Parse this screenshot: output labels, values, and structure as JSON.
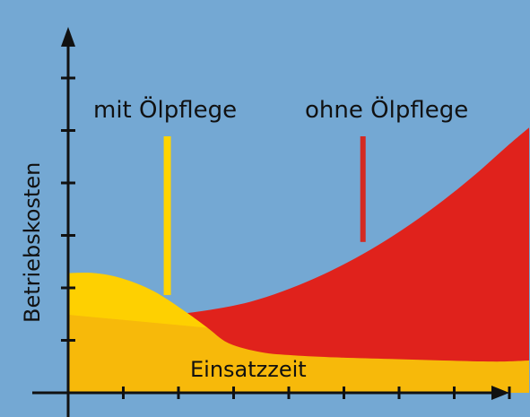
{
  "colors": {
    "background": "#74a8d3",
    "axis": "#111111",
    "with_oil_care": "#f7b90a",
    "with_oil_care_hump": "#ffd400",
    "without_oil_care": "#e0221c",
    "marker_with": "#ffd400",
    "marker_without": "#d42a22"
  },
  "chart_data": {
    "type": "area",
    "xlabel": "Einsatzzeit",
    "ylabel": "Betriebskosten",
    "x_ticks": 8,
    "y_ticks": 6,
    "series": [
      {
        "name": "mit Ölpflege",
        "x": [
          0,
          0.5,
          1,
          1.6,
          2.2,
          2.6,
          3,
          3.6,
          4.2,
          5,
          6,
          7,
          8,
          8.6
        ],
        "values": [
          2.3,
          2.3,
          2.2,
          1.95,
          1.55,
          1.25,
          0.95,
          0.78,
          0.72,
          0.68,
          0.65,
          0.62,
          0.6,
          0.62
        ]
      },
      {
        "name": "ohne Ölpflege",
        "x": [
          0,
          0.8,
          1.6,
          2.2,
          2.8,
          3.4,
          4.0,
          4.6,
          5.2,
          5.8,
          6.4,
          7.0,
          7.6,
          8.2,
          8.6
        ],
        "values": [
          1.5,
          1.45,
          1.48,
          1.53,
          1.62,
          1.75,
          1.95,
          2.2,
          2.5,
          2.85,
          3.25,
          3.7,
          4.2,
          4.75,
          5.1
        ]
      }
    ],
    "annotations": [
      {
        "text": "mit Ölpflege",
        "x": 1.85,
        "y": 1.88
      },
      {
        "text": "ohne Ölpflege",
        "x": 5.5,
        "y": 2.9
      }
    ],
    "xlim": [
      0,
      8.6
    ],
    "ylim": [
      0,
      6
    ],
    "grid": false
  }
}
